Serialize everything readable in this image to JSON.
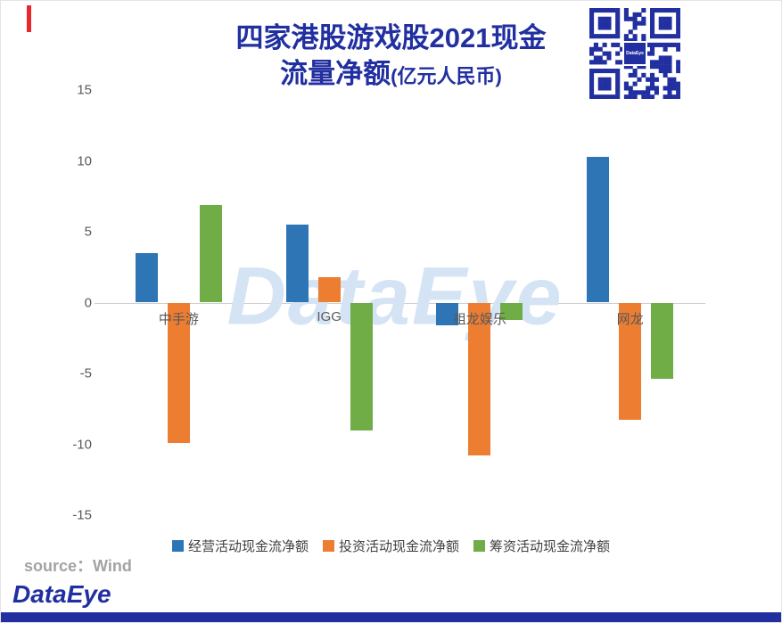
{
  "page": {
    "title_line1": "四家港股游戏股2021现金",
    "title_line2": "流量净额",
    "title_suffix": "(亿元人民币)",
    "watermark": "DataEye",
    "source_label": "source：Wind",
    "brand": "DataEye"
  },
  "colors": {
    "title": "#212fa0",
    "brand": "#212fa0",
    "footer_bar": "#212fa0",
    "qr_modules": "#212fa0",
    "watermark": "#d4e4f5",
    "accent_red": "#e8282d",
    "axis_text": "#595959",
    "zero_line": "#cfcfcf",
    "legend_text": "#404040",
    "source_text": "#a3a3a3"
  },
  "chart_data": {
    "type": "bar",
    "title": "四家港股游戏股2021现金流量净额(亿元人民币)",
    "categories": [
      "中手游",
      "IGG",
      "祖龙娱乐",
      "网龙"
    ],
    "series": [
      {
        "name": "经营活动现金流净额",
        "color": "#2e75b6",
        "values": [
          3.5,
          5.5,
          -1.6,
          10.3
        ]
      },
      {
        "name": "投资活动现金流净额",
        "color": "#ed7d31",
        "values": [
          -9.9,
          1.8,
          -10.8,
          -8.3
        ]
      },
      {
        "name": "筹资活动现金流净额",
        "color": "#70ad47",
        "values": [
          6.9,
          -9.0,
          -1.2,
          -5.4
        ]
      }
    ],
    "ylim": [
      -15,
      15
    ],
    "yticks": [
      15,
      10,
      5,
      0,
      -5,
      -10,
      -15
    ],
    "grid": false,
    "legend_position": "bottom",
    "source": "Wind"
  }
}
